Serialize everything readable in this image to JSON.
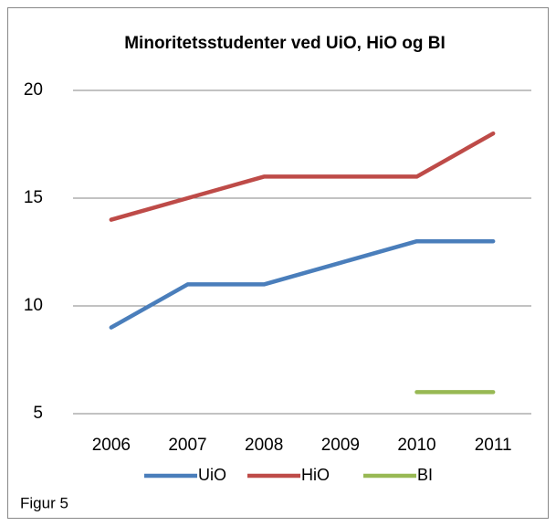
{
  "chart_data": {
    "type": "line",
    "title": "Minoritetsstudenter ved UiO, HiO  og BI",
    "annotation": "Figur 5",
    "categories": [
      "2006",
      "2007",
      "2008",
      "2009",
      "2010",
      "2011"
    ],
    "series": [
      {
        "name": "UiO",
        "color": "#4a7ebb",
        "values": [
          9,
          11,
          11,
          12,
          13,
          13
        ]
      },
      {
        "name": "HiO",
        "color": "#be4b48",
        "values": [
          14,
          15,
          16,
          16,
          16,
          18
        ]
      },
      {
        "name": "BI",
        "color": "#98b954",
        "values": [
          null,
          null,
          null,
          null,
          6,
          6
        ]
      }
    ],
    "ylim": [
      5,
      20
    ],
    "yticks": [
      5,
      10,
      15,
      20
    ],
    "grid": true,
    "legend": "bottom"
  }
}
